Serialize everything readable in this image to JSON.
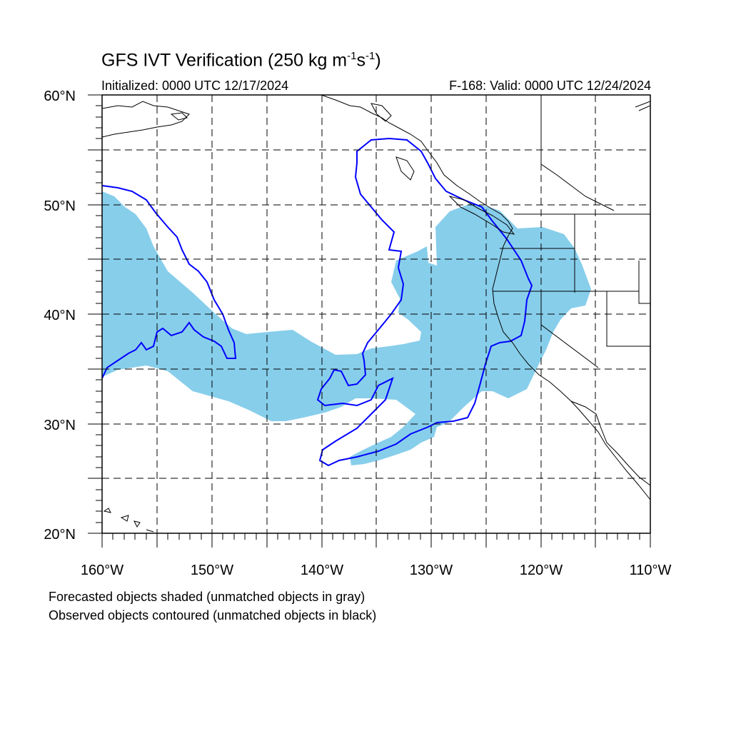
{
  "title": {
    "main": "GFS IVT Verification (250 kg m",
    "sup1": "-1",
    "mid": "s",
    "sup2": "-1",
    "end": ")"
  },
  "initialized": "Initialized: 0000 UTC 12/17/2024",
  "valid": "F-168: Valid: 0000 UTC 12/24/2024",
  "notes": {
    "forecast": "Forecasted objects shaded (unmatched objects in gray)",
    "observed": "Observed objects contoured (unmatched objects in black)"
  },
  "y_axis_labels": [
    "60°N",
    "50°N",
    "40°N",
    "30°N",
    "20°N"
  ],
  "x_axis_labels": [
    "160°W",
    "150°W",
    "140°W",
    "130°W",
    "120°W",
    "110°W"
  ],
  "map_data": {
    "extent": {
      "lon": [
        -160,
        -110
      ],
      "lat": [
        20,
        60
      ]
    },
    "gridlines": {
      "lon_step": 5,
      "lat_step": 5,
      "style": "dashed"
    },
    "colors": {
      "forecast_fill": "#87ceeb",
      "observed_contour": "#0000ff",
      "coastline": "#000000"
    }
  }
}
